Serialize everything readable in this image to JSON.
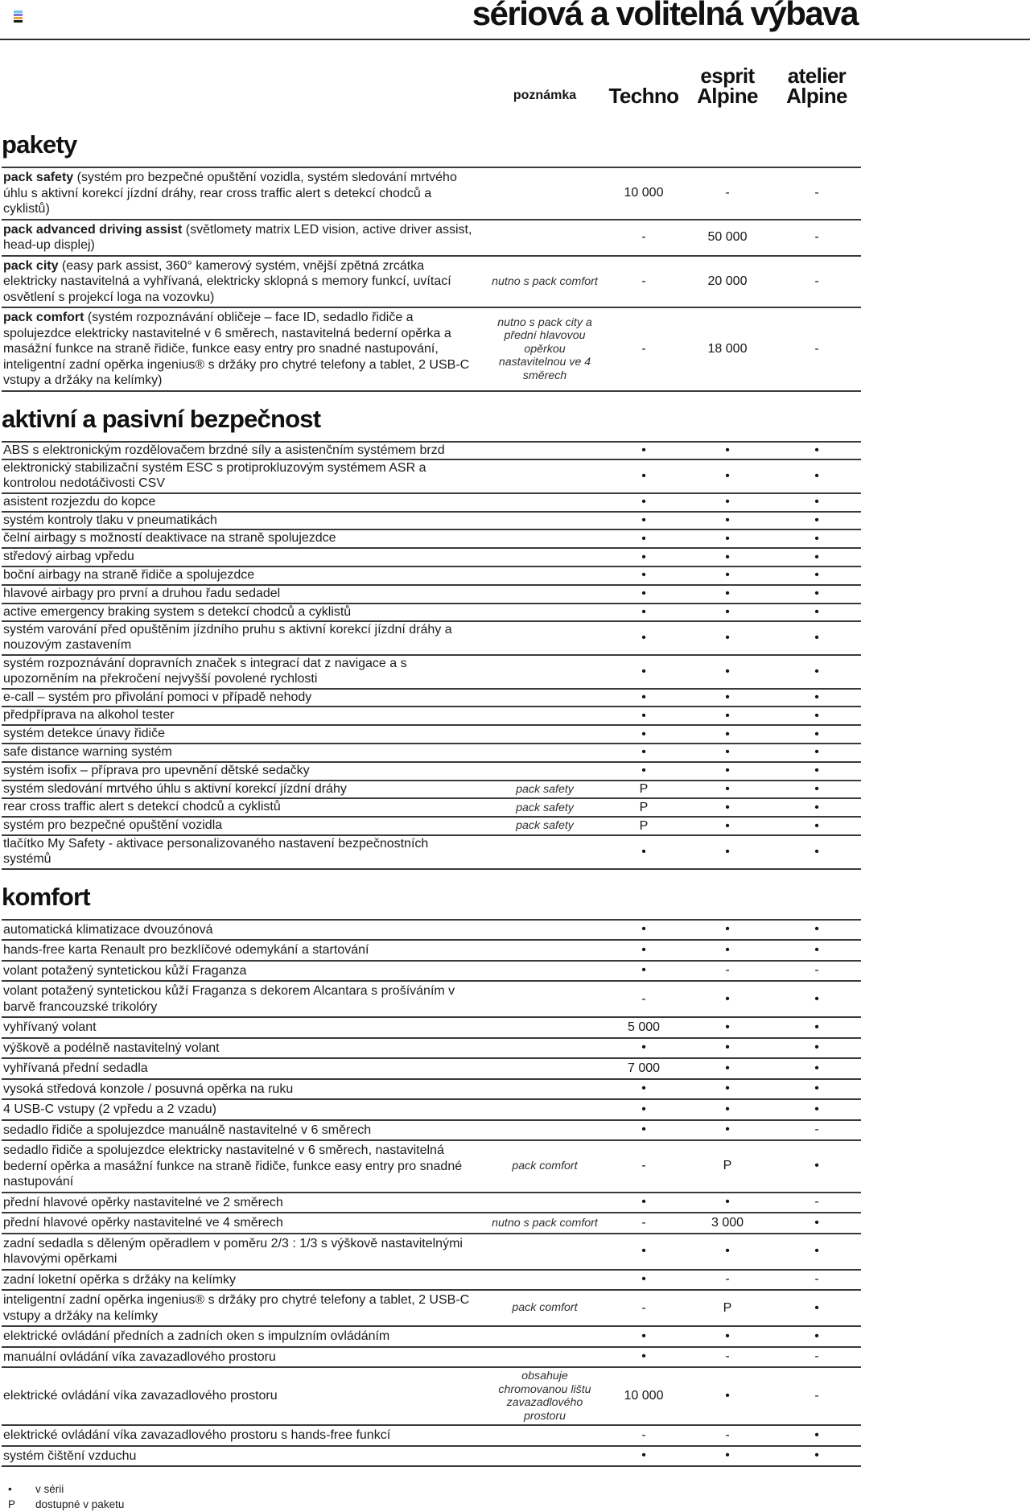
{
  "header": {
    "menu_icon_colors": [
      "#6ec9ea",
      "#7d74dd",
      "#f0a13c",
      "#1a1a1a"
    ],
    "title": "sériová a volitelná výbava",
    "note_column": "poznámka",
    "trims": [
      {
        "label": "Techno"
      },
      {
        "label": "esprit Alpine"
      },
      {
        "label": "atelier Alpine"
      }
    ]
  },
  "table": {
    "trim_keys": [
      "techno",
      "esprit-alpine",
      "atelier-alpine"
    ],
    "symbols": {
      "standard": "•",
      "pack": "P",
      "not_available": "-"
    },
    "sections": [
      {
        "id": "pakety",
        "title": "pakety",
        "rows": [
          {
            "bold": "pack safety",
            "feature": " (systém pro bezpečné opuštění vozidla, systém sledování mrtvého úhlu s aktivní korekcí jízdní dráhy, rear cross traffic alert s detekcí chodců a cyklistů)",
            "note": "",
            "values": [
              "10 000",
              "-",
              "-"
            ]
          },
          {
            "bold": "pack advanced driving assist",
            "feature": " (světlomety matrix LED vision, active driver assist, head-up displej)",
            "note": "",
            "values": [
              "-",
              "50 000",
              "-"
            ]
          },
          {
            "bold": "pack city",
            "feature": " (easy park assist, 360° kamerový systém, vnější zpětná zrcátka elektricky nastavitelná a vyhřívaná, elektricky sklopná s memory funkcí, uvítací osvětlení s projekcí loga na vozovku)",
            "note": "nutno s pack comfort",
            "values": [
              "-",
              "20 000",
              "-"
            ]
          },
          {
            "bold": "pack comfort",
            "feature": " (systém rozpoznávání obličeje – face ID, sedadlo řidiče a spolujezdce elektricky nastavitelné v 6 směrech, nastavitelná bederní opěrka a masážní funkce na straně řidiče, funkce easy entry pro snadné nastupování, inteligentní zadní opěrka ingenius® s držáky pro chytré telefony a tablet, 2 USB-C vstupy a držáky na kelímky)",
            "note": "nutno s pack city a přední hlavovou opěrkou nastavitelnou ve 4 směrech",
            "values": [
              "-",
              "18 000",
              "-"
            ]
          }
        ]
      },
      {
        "id": "bezpecnost",
        "title": "aktivní a pasivní bezpečnost",
        "rows": [
          {
            "feature": "ABS s elektronickým rozdělovačem brzdné síly a asistenčním systémem brzd",
            "note": "",
            "values": [
              "•",
              "•",
              "•"
            ]
          },
          {
            "feature": "elektronický stabilizační systém ESC s protiprokluzovým systémem ASR a kontrolou nedotáčivosti CSV",
            "note": "",
            "values": [
              "•",
              "•",
              "•"
            ]
          },
          {
            "feature": "asistent rozjezdu do kopce",
            "note": "",
            "values": [
              "•",
              "•",
              "•"
            ]
          },
          {
            "feature": "systém kontroly tlaku v pneumatikách",
            "note": "",
            "values": [
              "•",
              "•",
              "•"
            ]
          },
          {
            "feature": "čelní airbagy s možností deaktivace na straně spolujezdce",
            "note": "",
            "values": [
              "•",
              "•",
              "•"
            ]
          },
          {
            "feature": "středový airbag vpředu",
            "note": "",
            "values": [
              "•",
              "•",
              "•"
            ]
          },
          {
            "feature": "boční airbagy na straně řidiče a spolujezdce",
            "note": "",
            "values": [
              "•",
              "•",
              "•"
            ]
          },
          {
            "feature": "hlavové airbagy pro první a druhou řadu sedadel",
            "note": "",
            "values": [
              "•",
              "•",
              "•"
            ]
          },
          {
            "feature": "active emergency braking system s detekcí chodců a cyklistů",
            "note": "",
            "values": [
              "•",
              "•",
              "•"
            ]
          },
          {
            "feature": "systém varování před opuštěním jízdního pruhu s aktivní korekcí jízdní dráhy a nouzovým zastavením",
            "note": "",
            "values": [
              "•",
              "•",
              "•"
            ]
          },
          {
            "feature": "systém rozpoznávání dopravních značek s integrací dat z navigace a s upozorněním na překročení nejvyšší povolené rychlosti",
            "note": "",
            "values": [
              "•",
              "•",
              "•"
            ]
          },
          {
            "feature": "e-call – systém pro přivolání pomoci v případě nehody",
            "note": "",
            "values": [
              "•",
              "•",
              "•"
            ]
          },
          {
            "feature": "předpříprava na alkohol tester",
            "note": "",
            "values": [
              "•",
              "•",
              "•"
            ]
          },
          {
            "feature": "systém detekce únavy řidiče",
            "note": "",
            "values": [
              "•",
              "•",
              "•"
            ]
          },
          {
            "feature": "safe distance warning systém",
            "note": "",
            "values": [
              "•",
              "•",
              "•"
            ]
          },
          {
            "feature": "systém isofix – příprava pro upevnění dětské sedačky",
            "note": "",
            "values": [
              "•",
              "•",
              "•"
            ]
          },
          {
            "feature": "systém sledování mrtvého úhlu s aktivní korekcí jízdní dráhy",
            "note": "pack safety",
            "values": [
              "P",
              "•",
              "•"
            ]
          },
          {
            "feature": "rear cross traffic alert s detekcí chodců a cyklistů",
            "note": "pack safety",
            "values": [
              "P",
              "•",
              "•"
            ]
          },
          {
            "feature": "systém pro bezpečné opuštění vozidla",
            "note": "pack safety",
            "values": [
              "P",
              "•",
              "•"
            ]
          },
          {
            "feature": "tlačítko My Safety - aktivace personalizovaného nastavení bezpečnostních systémů",
            "note": "",
            "values": [
              "•",
              "•",
              "•"
            ]
          }
        ]
      },
      {
        "id": "komfort",
        "title": "komfort",
        "rows": [
          {
            "feature": "automatická klimatizace dvouzónová",
            "note": "",
            "values": [
              "•",
              "•",
              "•"
            ]
          },
          {
            "feature": "hands-free karta Renault pro bezklíčové odemykání a startování",
            "note": "",
            "values": [
              "•",
              "•",
              "•"
            ]
          },
          {
            "feature": "volant potažený syntetickou kůží Fraganza",
            "note": "",
            "values": [
              "•",
              "-",
              "-"
            ]
          },
          {
            "feature": "volant potažený syntetickou kůží Fraganza s dekorem Alcantara s prošíváním v barvě francouzské trikolóry",
            "note": "",
            "values": [
              "-",
              "•",
              "•"
            ]
          },
          {
            "feature": "vyhřívaný volant",
            "note": "",
            "values": [
              "5 000",
              "•",
              "•"
            ]
          },
          {
            "feature": "výškově a podélně nastavitelný volant",
            "note": "",
            "values": [
              "•",
              "•",
              "•"
            ]
          },
          {
            "feature": "vyhřívaná přední sedadla",
            "note": "",
            "values": [
              "7 000",
              "•",
              "•"
            ]
          },
          {
            "feature": "vysoká středová konzole / posuvná opěrka na ruku",
            "note": "",
            "values": [
              "•",
              "•",
              "•"
            ]
          },
          {
            "feature": "4 USB-C vstupy (2 vpředu a 2 vzadu)",
            "note": "",
            "values": [
              "•",
              "•",
              "•"
            ]
          },
          {
            "feature": "sedadlo řidiče a spolujezdce manuálně nastavitelné v 6 směrech",
            "note": "",
            "values": [
              "•",
              "•",
              "-"
            ]
          },
          {
            "feature": "sedadlo řidiče a spolujezdce elektricky nastavitelné v 6 směrech, nastavitelná bederní opěrka a masážní funkce na straně řidiče, funkce easy entry pro snadné nastupování",
            "note": "pack comfort",
            "values": [
              "-",
              "P",
              "•"
            ]
          },
          {
            "feature": "přední hlavové opěrky nastavitelné ve 2 směrech",
            "note": "",
            "values": [
              "•",
              "•",
              "-"
            ]
          },
          {
            "feature": "přední hlavové opěrky nastavitelné ve 4 směrech",
            "note": "nutno s pack comfort",
            "values": [
              "-",
              "3 000",
              "•"
            ]
          },
          {
            "feature": "zadní sedadla s děleným opěradlem v poměru 2/3 : 1/3 s výškově nastavitelnými hlavovými opěrkami",
            "note": "",
            "values": [
              "•",
              "•",
              "•"
            ]
          },
          {
            "feature": "zadní loketní opěrka s držáky na kelímky",
            "note": "",
            "values": [
              "•",
              "-",
              "-"
            ]
          },
          {
            "feature": "inteligentní zadní opěrka ingenius® s držáky pro chytré telefony a tablet, 2 USB-C vstupy a držáky na kelímky",
            "note": "pack comfort",
            "values": [
              "-",
              "P",
              "•"
            ]
          },
          {
            "feature": "elektrické ovládání předních a zadních oken s impulzním ovládáním",
            "note": "",
            "values": [
              "•",
              "•",
              "•"
            ]
          },
          {
            "feature": "manuální ovládání víka zavazadlového prostoru",
            "note": "",
            "values": [
              "•",
              "-",
              "-"
            ]
          },
          {
            "feature": "elektrické ovládání víka zavazadlového prostoru",
            "note": "obsahuje chromovanou lištu zavazadlového prostoru",
            "values": [
              "10 000",
              "•",
              "-"
            ]
          },
          {
            "feature": "elektrické ovládání víka zavazadlového prostoru s hands-free funkcí",
            "note": "",
            "values": [
              "-",
              "-",
              "•"
            ]
          },
          {
            "feature": "systém čištění vzduchu",
            "note": "",
            "values": [
              "•",
              "•",
              "•"
            ]
          }
        ]
      }
    ]
  },
  "legend": {
    "items": [
      {
        "symbol": "•",
        "label": "v sérii"
      },
      {
        "symbol": "P",
        "label": "dostupné v paketu"
      }
    ]
  }
}
